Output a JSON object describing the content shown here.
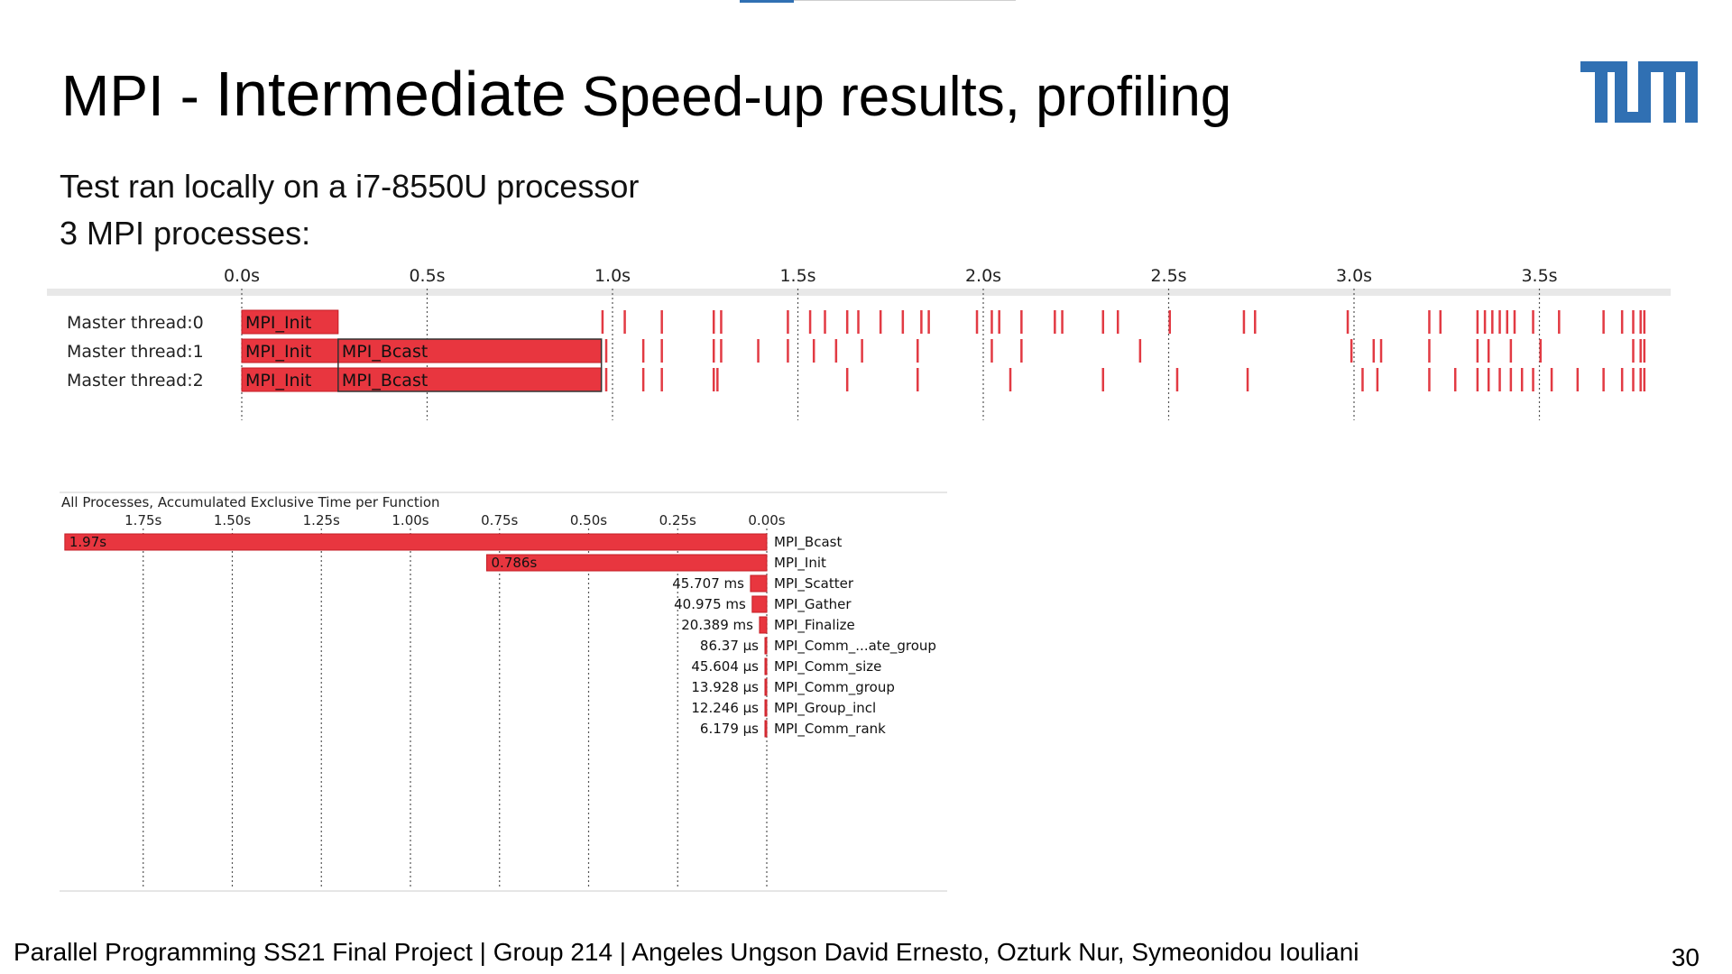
{
  "slide": {
    "title_part1": "MPI - ",
    "title_part2": "Intermediate",
    "title_part3": " Speed-up results, profiling",
    "line1": "Test ran locally on a  i7-8550U processor",
    "line2": "3 MPI processes:",
    "footer": "Parallel Programming SS21 Final Project | Group 214 | Angeles Ungson David Ernesto, Ozturk Nur, Symeonidou Iouliani",
    "page_number": "30",
    "logo_text": "TUM",
    "accent_color": "#3070b3"
  },
  "timeline": {
    "type": "timeline",
    "x_ticks": [
      "0.0s",
      "0.5s",
      "1.0s",
      "1.5s",
      "2.0s",
      "2.5s",
      "3.0s",
      "3.5s"
    ],
    "tick_values": [
      0.0,
      0.5,
      1.0,
      1.5,
      2.0,
      2.5,
      3.0,
      3.5
    ],
    "rows": [
      "Master thread:0",
      "Master thread:1",
      "Master thread:2"
    ],
    "intervals": [
      {
        "row": 0,
        "label": "MPI_Init",
        "start": 0.0,
        "end": 0.26
      },
      {
        "row": 1,
        "label": "MPI_Init",
        "start": 0.0,
        "end": 0.26
      },
      {
        "row": 1,
        "label": "MPI_Bcast",
        "start": 0.26,
        "end": 0.97
      },
      {
        "row": 2,
        "label": "MPI_Init",
        "start": 0.0,
        "end": 0.26
      },
      {
        "row": 2,
        "label": "MPI_Bcast",
        "start": 0.26,
        "end": 0.97
      }
    ],
    "event_times": [
      [
        0.97,
        1.03,
        1.13,
        1.27,
        1.29,
        1.47,
        1.53,
        1.57,
        1.63,
        1.66,
        1.72,
        1.78,
        1.83,
        1.85,
        1.98,
        2.02,
        2.04,
        2.1,
        2.19,
        2.21,
        2.32,
        2.36,
        2.5,
        2.7,
        2.73,
        2.98,
        3.2,
        3.23,
        3.33,
        3.35,
        3.37,
        3.39,
        3.41,
        3.43,
        3.48,
        3.55,
        3.67,
        3.72,
        3.75,
        3.77,
        3.78
      ],
      [
        0.98,
        1.08,
        1.13,
        1.27,
        1.29,
        1.39,
        1.47,
        1.54,
        1.6,
        1.67,
        1.82,
        2.02,
        2.1,
        2.42,
        2.99,
        3.05,
        3.07,
        3.2,
        3.33,
        3.36,
        3.42,
        3.5,
        3.75,
        3.77,
        3.78
      ],
      [
        0.98,
        1.08,
        1.13,
        1.27,
        1.28,
        1.63,
        1.82,
        2.07,
        2.32,
        2.52,
        2.71,
        3.02,
        3.06,
        3.2,
        3.27,
        3.33,
        3.36,
        3.39,
        3.42,
        3.45,
        3.48,
        3.53,
        3.6,
        3.67,
        3.72,
        3.75,
        3.77,
        3.78
      ]
    ]
  },
  "chart_data": {
    "type": "bar",
    "title": "All Processes, Accumulated Exclusive Time per Function",
    "x_ticks": [
      "1.75s",
      "1.50s",
      "1.25s",
      "1.00s",
      "0.75s",
      "0.50s",
      "0.25s",
      "0.00s"
    ],
    "tick_values": [
      1.75,
      1.5,
      1.25,
      1.0,
      0.75,
      0.5,
      0.25,
      0.0
    ],
    "xlim": [
      2.0,
      0.0
    ],
    "unit": "s",
    "categories": [
      "MPI_Bcast",
      "MPI_Init",
      "MPI_Scatter",
      "MPI_Gather",
      "MPI_Finalize",
      "MPI_Comm_...ate_group",
      "MPI_Comm_size",
      "MPI_Comm_group",
      "MPI_Group_incl",
      "MPI_Comm_rank"
    ],
    "values": [
      1.97,
      0.786,
      0.045707,
      0.040975,
      0.020389,
      8.637e-05,
      4.5604e-05,
      1.3928e-05,
      1.2246e-05,
      6.179e-06
    ],
    "value_labels": [
      "1.97s",
      "0.786s",
      "45.707 ms",
      "40.975 ms",
      "20.389 ms",
      "86.37 µs",
      "45.604 µs",
      "13.928 µs",
      "12.246 µs",
      "6.179 µs"
    ]
  }
}
